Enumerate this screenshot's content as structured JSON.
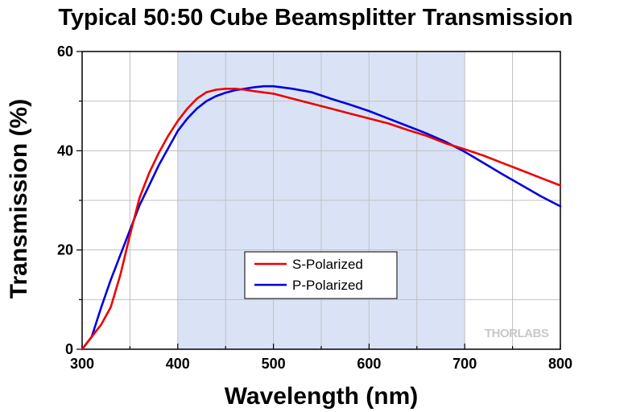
{
  "chart_data": {
    "type": "line",
    "title": "Typical 50:50 Cube Beamsplitter Transmission",
    "xlabel": "Wavelength (nm)",
    "ylabel": "Transmission (%)",
    "xlim": [
      300,
      800
    ],
    "ylim": [
      0,
      60
    ],
    "xticks": [
      300,
      400,
      500,
      600,
      700,
      800
    ],
    "yticks": [
      0,
      20,
      40,
      60
    ],
    "grid": true,
    "highlight_band": {
      "x": [
        400,
        700
      ],
      "color": "#dae3f5"
    },
    "legend": {
      "position": "lower-center"
    },
    "series": [
      {
        "name": "S-Polarized",
        "color": "#ee0000",
        "x": [
          300,
          310,
          320,
          330,
          340,
          350,
          360,
          370,
          380,
          390,
          400,
          410,
          420,
          430,
          440,
          450,
          460,
          470,
          480,
          500,
          520,
          540,
          560,
          580,
          600,
          620,
          640,
          660,
          680,
          700,
          720,
          740,
          760,
          780,
          800
        ],
        "y": [
          0,
          2.5,
          5,
          8.5,
          15,
          23,
          30.5,
          35.5,
          39.5,
          43,
          46,
          48.5,
          50.5,
          51.8,
          52.3,
          52.5,
          52.5,
          52.3,
          52,
          51.5,
          50.5,
          49.5,
          48.5,
          47.5,
          46.5,
          45.5,
          44.2,
          43,
          41.5,
          40.3,
          39,
          37.5,
          36,
          34.5,
          33
        ]
      },
      {
        "name": "P-Polarized",
        "color": "#0000dd",
        "x": [
          300,
          310,
          320,
          330,
          340,
          350,
          360,
          370,
          380,
          390,
          400,
          410,
          420,
          430,
          440,
          450,
          460,
          470,
          480,
          490,
          500,
          520,
          540,
          560,
          580,
          600,
          620,
          640,
          660,
          680,
          700,
          720,
          740,
          760,
          780,
          800
        ],
        "y": [
          0,
          2.5,
          8.5,
          14,
          19,
          24,
          29,
          33,
          37,
          40.5,
          44,
          46.5,
          48.5,
          50,
          51,
          51.7,
          52.2,
          52.5,
          52.8,
          53,
          53,
          52.5,
          51.8,
          50.5,
          49.3,
          48,
          46.5,
          45,
          43.5,
          41.8,
          39.8,
          37.5,
          35.2,
          33,
          30.8,
          28.8
        ]
      }
    ]
  },
  "watermark": "THORLABS"
}
